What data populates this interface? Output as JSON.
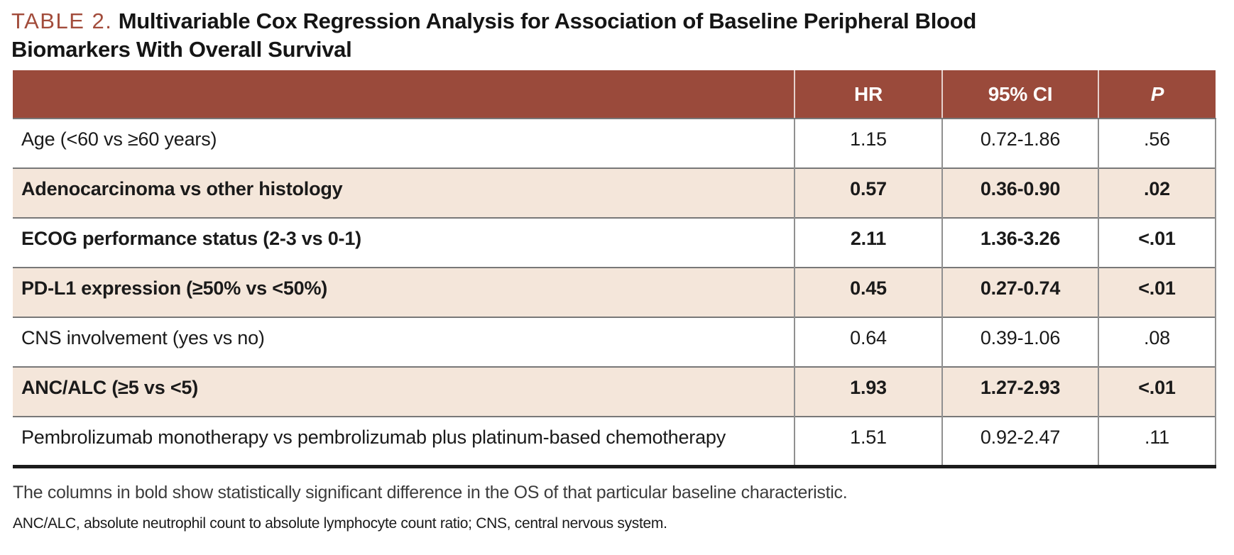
{
  "title": {
    "tag": "TABLE 2.",
    "text": "Multivariable Cox Regression Analysis for Association of Baseline Peripheral Blood Biomarkers With Overall Survival"
  },
  "table": {
    "columns": {
      "label": "",
      "hr": "HR",
      "ci": "95% CI",
      "p": "P"
    },
    "rows": [
      {
        "label": "Age (<60 vs ≥60 years)",
        "hr": "1.15",
        "ci": "0.72-1.86",
        "p": ".56",
        "bold": false,
        "shaded": false
      },
      {
        "label": "Adenocarcinoma vs other histology",
        "hr": "0.57",
        "ci": "0.36-0.90",
        "p": ".02",
        "bold": true,
        "shaded": true
      },
      {
        "label": "ECOG performance status (2-3 vs 0-1)",
        "hr": "2.11",
        "ci": "1.36-3.26",
        "p": "<.01",
        "bold": true,
        "shaded": false
      },
      {
        "label": "PD-L1 expression (≥50% vs <50%)",
        "hr": "0.45",
        "ci": "0.27-0.74",
        "p": "<.01",
        "bold": true,
        "shaded": true
      },
      {
        "label": "CNS involvement (yes vs no)",
        "hr": "0.64",
        "ci": "0.39-1.06",
        "p": ".08",
        "bold": false,
        "shaded": false
      },
      {
        "label": "ANC/ALC (≥5 vs <5)",
        "hr": "1.93",
        "ci": "1.27-2.93",
        "p": "<.01",
        "bold": true,
        "shaded": true
      },
      {
        "label": "Pembrolizumab monotherapy vs pembrolizumab plus platinum-based chemotherapy",
        "hr": "1.51",
        "ci": "0.92-2.47",
        "p": ".11",
        "bold": false,
        "shaded": false
      }
    ]
  },
  "footnotes": {
    "note1": "The columns in bold show statistically significant difference in the OS of that particular baseline characteristic.",
    "note2": "ANC/ALC, absolute neutrophil count to absolute lymphocyte count ratio; CNS, central nervous system."
  },
  "colors": {
    "header_bg": "#9a4a3b",
    "shaded_row_bg": "#f4e6da",
    "title_accent": "#a24c3b",
    "bottom_rule": "#1c1c1c"
  }
}
